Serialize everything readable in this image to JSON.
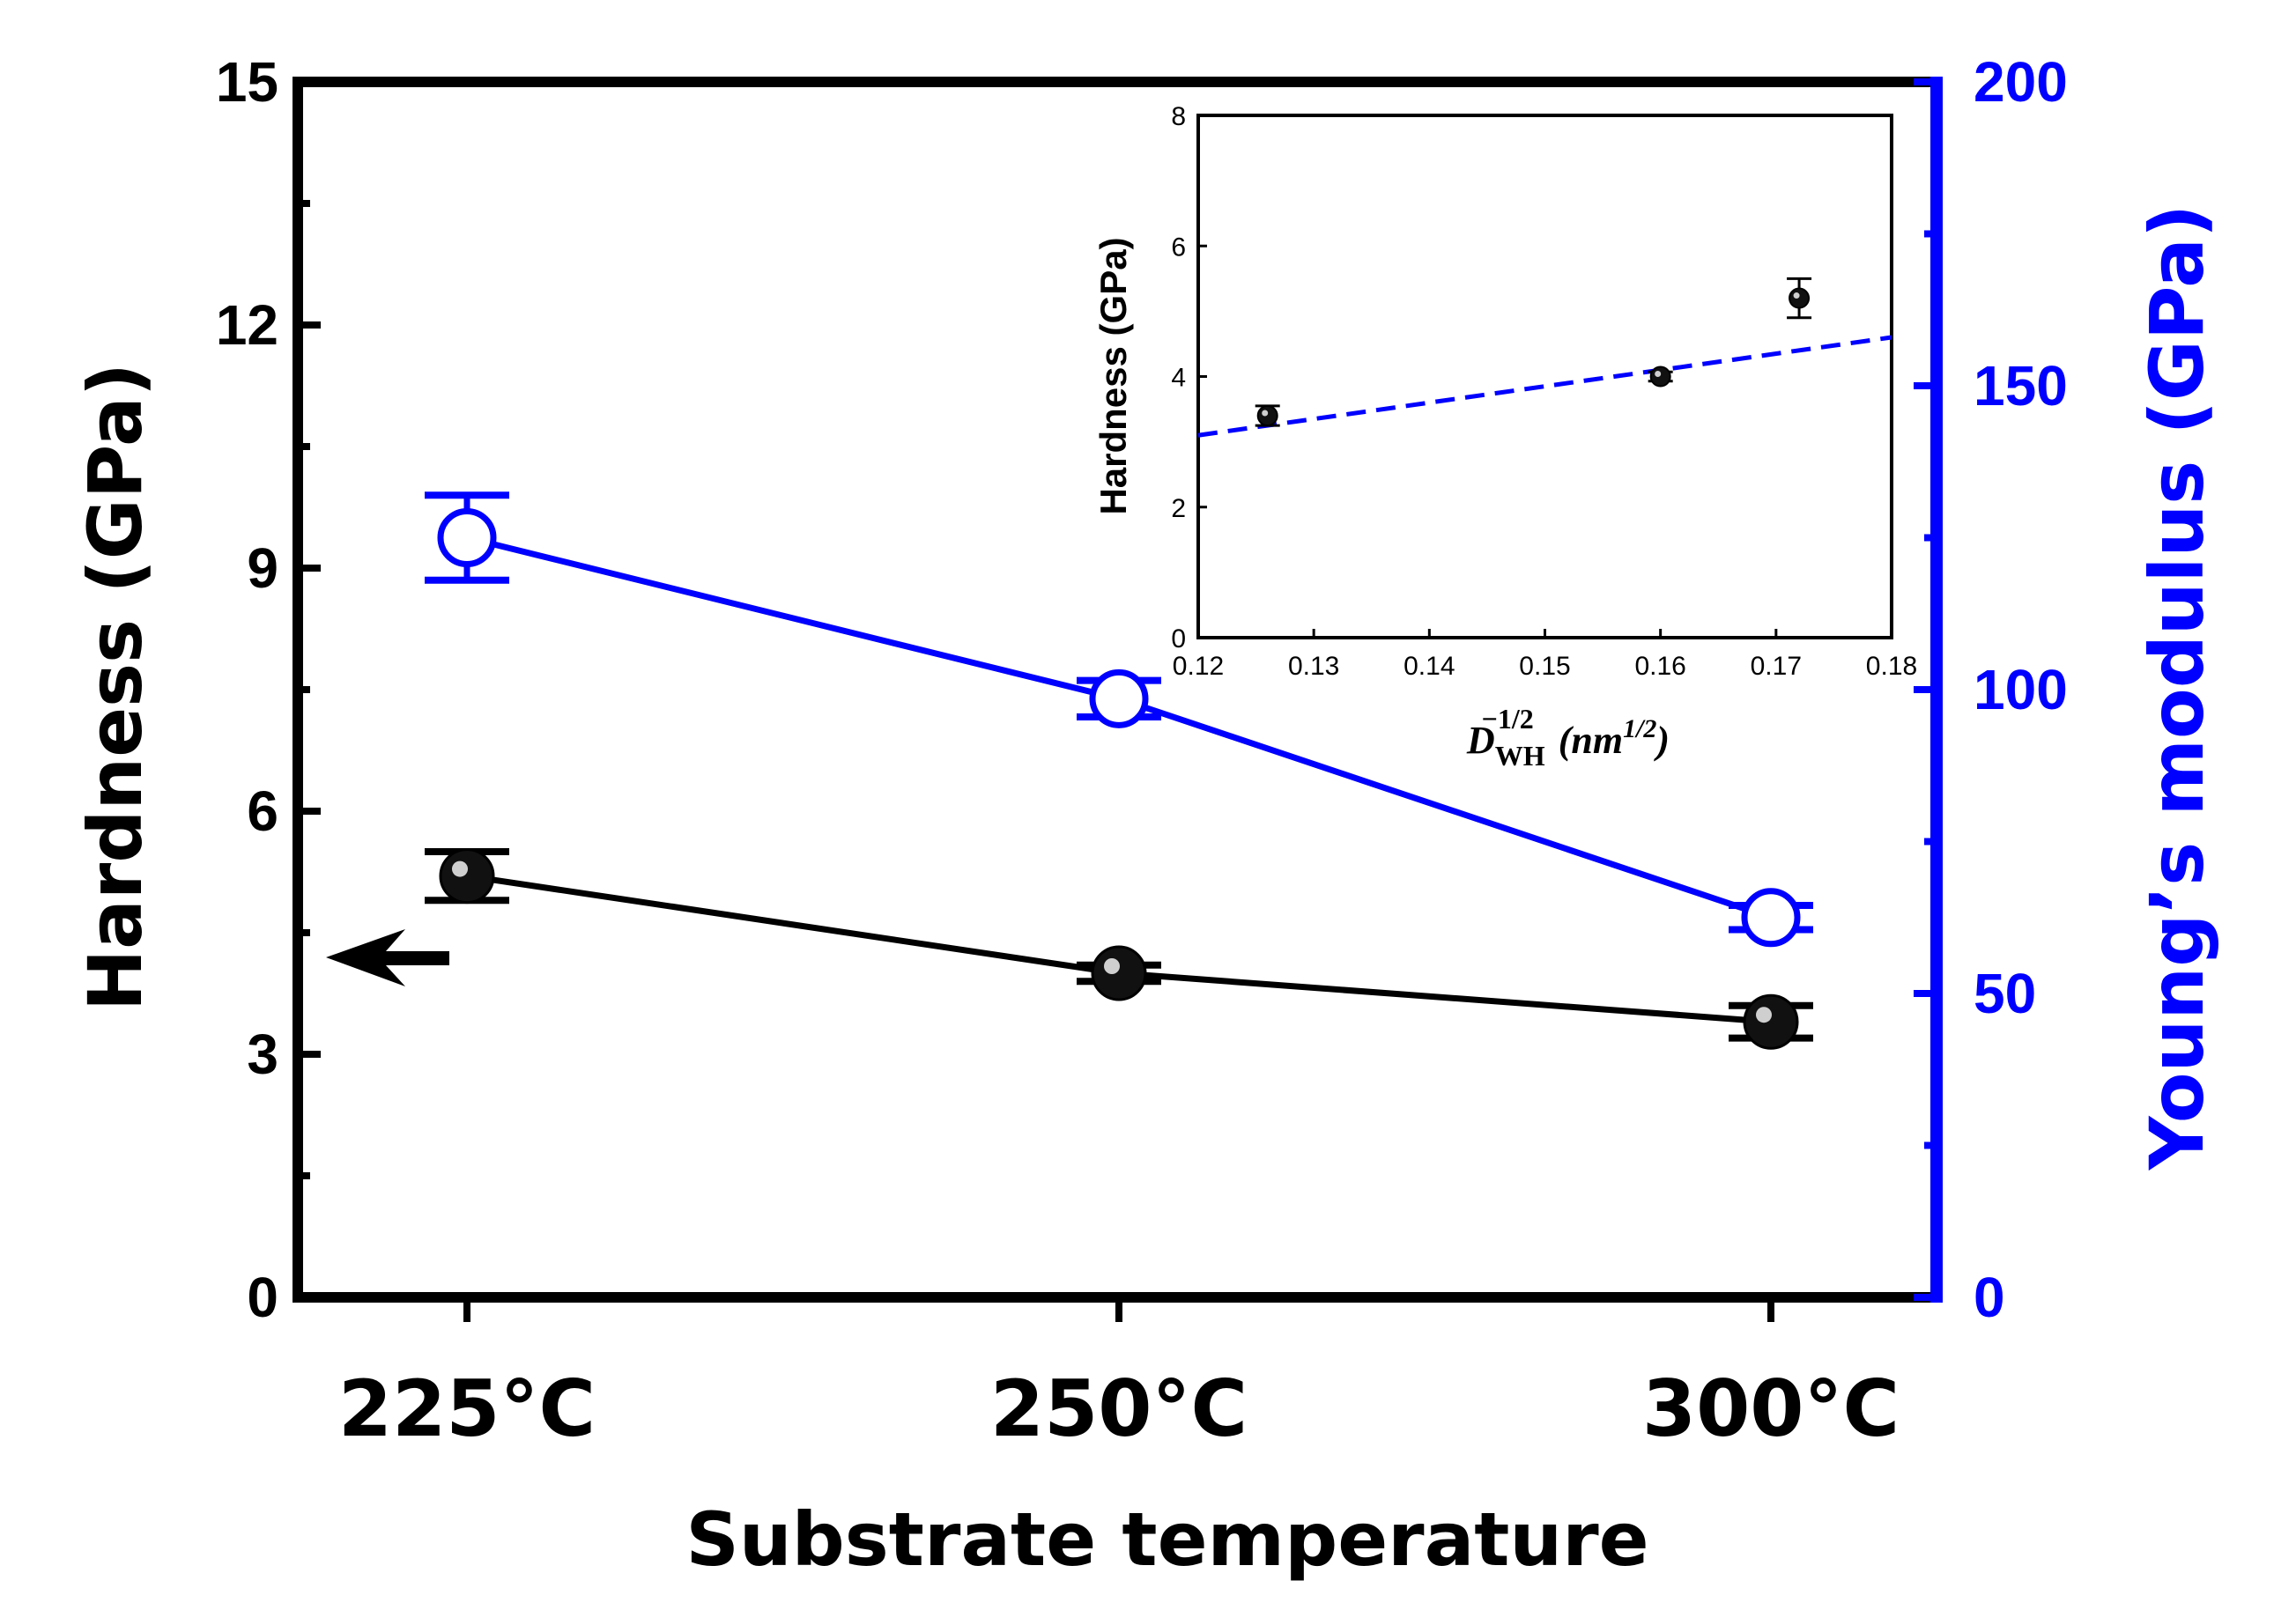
{
  "chart_data": {
    "type": "line",
    "xlabel": "Substrate temperature",
    "categories": [
      "225",
      "250",
      "300"
    ],
    "category_unit": "°C",
    "y_left": {
      "label": "Hardness (GPa)",
      "ylim": [
        0,
        15
      ],
      "ticks": [
        "0",
        "3",
        "6",
        "9",
        "12",
        "15"
      ],
      "color": "#000000"
    },
    "y_right": {
      "label": "Young’s modulus (GPa)",
      "ylim": [
        0,
        200
      ],
      "ticks": [
        "0",
        "50",
        "100",
        "150",
        "200"
      ],
      "color": "#0000ff"
    },
    "series": [
      {
        "name": "Hardness",
        "axis": "left",
        "marker": "filled-sphere",
        "color": "#000000",
        "values": [
          5.2,
          4.0,
          3.4
        ],
        "errors": [
          0.3,
          0.1,
          0.2
        ]
      },
      {
        "name": "Young’s modulus",
        "axis": "right",
        "marker": "open-circle",
        "color": "#0000ff",
        "values": [
          125,
          98.5,
          62.5
        ],
        "errors": [
          7,
          3,
          2
        ]
      }
    ],
    "annotations": [
      {
        "type": "arrow",
        "direction": "left",
        "points_to_axis": "left",
        "color": "#000000"
      }
    ],
    "inset": {
      "type": "scatter",
      "xlabel": "D_WH^(-1/2) (nm^(1/2))",
      "xlabel_parts": {
        "base": "D",
        "sub": "WH",
        "sup": "−1/2",
        "unit_base": "(nm",
        "unit_sup": "1/2",
        "unit_close": ")"
      },
      "ylabel": "Hardness (GPa)",
      "xlim": [
        0.12,
        0.18
      ],
      "ylim": [
        0,
        8
      ],
      "xticks": [
        "0.12",
        "0.13",
        "0.14",
        "0.15",
        "0.16",
        "0.17",
        "0.18"
      ],
      "yticks": [
        "0",
        "2",
        "4",
        "6",
        "8"
      ],
      "points": [
        {
          "x": 0.126,
          "y": 3.4,
          "err": 0.15
        },
        {
          "x": 0.16,
          "y": 4.0,
          "err": 0.07
        },
        {
          "x": 0.172,
          "y": 5.2,
          "err": 0.3
        }
      ],
      "fit_line": {
        "style": "dashed",
        "color": "#0000ff",
        "x": [
          0.12,
          0.18
        ],
        "y": [
          3.1,
          4.6
        ]
      }
    }
  }
}
